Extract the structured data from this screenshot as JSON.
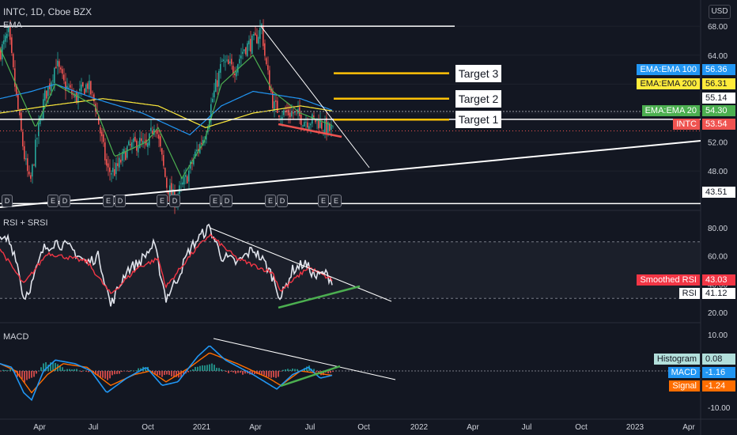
{
  "header": {
    "symbol_line": "INTC, 1D, Cboe BZX",
    "ema_title": "EMA",
    "currency": "USD"
  },
  "panes": {
    "rsi_title": "RSI + SRSI",
    "macd_title": "MACD"
  },
  "targets": [
    {
      "label": "Target 3",
      "price": 61.5
    },
    {
      "label": "Target 2",
      "price": 58.0
    },
    {
      "label": "Target 1",
      "price": 55.1
    }
  ],
  "event_markers": [
    "D",
    "E",
    "D",
    "E",
    "D",
    "E",
    "D",
    "E",
    "D",
    "E",
    "D",
    "E",
    "E"
  ],
  "price_tags": [
    {
      "label": "EMA:EMA 100",
      "value": "56.36",
      "bg": "#2196f3",
      "fg": "#ffffff"
    },
    {
      "label": "EMA:EMA 200",
      "value": "56.31",
      "bg": "#ffeb3b",
      "fg": "#131722"
    },
    {
      "label": "",
      "value": "55.14",
      "bg": "#ffffff",
      "fg": "#131722"
    },
    {
      "label": "EMA:EMA 20",
      "value": "54.30",
      "bg": "#4caf50",
      "fg": "#ffffff"
    },
    {
      "label": "INTC",
      "value": "53.54",
      "bg": "#ef5350",
      "fg": "#ffffff"
    },
    {
      "label": "",
      "value": "43.51",
      "bg": "#ffffff",
      "fg": "#131722"
    }
  ],
  "rsi_tags": [
    {
      "label": "Smoothed RSI",
      "value": "43.03",
      "bg": "#f23645",
      "fg": "#ffffff"
    },
    {
      "label": "RSI",
      "value": "41.12",
      "bg": "#ffffff",
      "fg": "#131722"
    }
  ],
  "macd_tags": [
    {
      "label": "Histogram",
      "value": "0.08",
      "bg": "#b2dfdb",
      "fg": "#131722"
    },
    {
      "label": "MACD",
      "value": "-1.16",
      "bg": "#2196f3",
      "fg": "#ffffff"
    },
    {
      "label": "Signal",
      "value": "-1.24",
      "bg": "#ff6d00",
      "fg": "#ffffff"
    }
  ],
  "chart_data": {
    "type": "line",
    "title": "INTC, 1D, Cboe BZX",
    "x_labels": [
      "Apr",
      "Jul",
      "Oct",
      "2021",
      "Apr",
      "Jul",
      "Oct",
      "2022",
      "Apr",
      "Jul",
      "Oct",
      "2023",
      "Apr"
    ],
    "price_ticks": [
      68.0,
      64.0,
      60.0,
      56.0,
      52.0,
      48.0
    ],
    "rsi_ticks": [
      80.0,
      60.0,
      40.0,
      20.0
    ],
    "macd_ticks": [
      10.0,
      -10.0
    ],
    "price": {
      "ylim": [
        43.0,
        69.0
      ],
      "close_anchors": [
        [
          0,
          64.5
        ],
        [
          10,
          67
        ],
        [
          20,
          58
        ],
        [
          30,
          50
        ],
        [
          37,
          46
        ],
        [
          45,
          52
        ],
        [
          55,
          58
        ],
        [
          62,
          60
        ],
        [
          70,
          63
        ],
        [
          80,
          60
        ],
        [
          95,
          58
        ],
        [
          110,
          60
        ],
        [
          120,
          57
        ],
        [
          135,
          48
        ],
        [
          145,
          48
        ],
        [
          160,
          51
        ],
        [
          175,
          52
        ],
        [
          185,
          51
        ],
        [
          195,
          55
        ],
        [
          200,
          52
        ],
        [
          210,
          46
        ],
        [
          220,
          44
        ],
        [
          235,
          47
        ],
        [
          245,
          50
        ],
        [
          258,
          53
        ],
        [
          268,
          58
        ],
        [
          280,
          63
        ],
        [
          295,
          62
        ],
        [
          308,
          65
        ],
        [
          322,
          66
        ],
        [
          330,
          68
        ],
        [
          335,
          63
        ],
        [
          345,
          57
        ],
        [
          355,
          56
        ],
        [
          370,
          56
        ],
        [
          385,
          55
        ],
        [
          400,
          55
        ],
        [
          410,
          54
        ],
        [
          420,
          53.5
        ]
      ],
      "ema20_anchors": [
        [
          0,
          65
        ],
        [
          20,
          60
        ],
        [
          45,
          54
        ],
        [
          70,
          60
        ],
        [
          120,
          57
        ],
        [
          145,
          50
        ],
        [
          185,
          52
        ],
        [
          200,
          54
        ],
        [
          230,
          47
        ],
        [
          258,
          52
        ],
        [
          280,
          60
        ],
        [
          320,
          64
        ],
        [
          345,
          59
        ],
        [
          380,
          56
        ],
        [
          420,
          54.3
        ]
      ],
      "ema100_anchors": [
        [
          0,
          58
        ],
        [
          40,
          59
        ],
        [
          70,
          60
        ],
        [
          120,
          58
        ],
        [
          180,
          56
        ],
        [
          240,
          53
        ],
        [
          280,
          57
        ],
        [
          320,
          59
        ],
        [
          380,
          58
        ],
        [
          420,
          56.4
        ]
      ],
      "ema200_anchors": [
        [
          0,
          56
        ],
        [
          60,
          57
        ],
        [
          130,
          58
        ],
        [
          200,
          57
        ],
        [
          260,
          54
        ],
        [
          320,
          56
        ],
        [
          380,
          57
        ],
        [
          420,
          56.3
        ]
      ]
    },
    "rsi": {
      "ylim": [
        15,
        90
      ],
      "anchors": [
        [
          0,
          70
        ],
        [
          10,
          72
        ],
        [
          20,
          60
        ],
        [
          30,
          30
        ],
        [
          40,
          40
        ],
        [
          55,
          65
        ],
        [
          70,
          70
        ],
        [
          90,
          65
        ],
        [
          110,
          55
        ],
        [
          125,
          60
        ],
        [
          140,
          25
        ],
        [
          160,
          50
        ],
        [
          175,
          55
        ],
        [
          195,
          68
        ],
        [
          210,
          30
        ],
        [
          225,
          45
        ],
        [
          240,
          65
        ],
        [
          255,
          75
        ],
        [
          265,
          80
        ],
        [
          280,
          60
        ],
        [
          300,
          55
        ],
        [
          320,
          65
        ],
        [
          335,
          55
        ],
        [
          345,
          45
        ],
        [
          355,
          30
        ],
        [
          370,
          50
        ],
        [
          385,
          55
        ],
        [
          400,
          45
        ],
        [
          410,
          48
        ],
        [
          420,
          43
        ]
      ],
      "smooth_anchors": [
        [
          0,
          65
        ],
        [
          30,
          40
        ],
        [
          60,
          62
        ],
        [
          110,
          56
        ],
        [
          140,
          33
        ],
        [
          175,
          52
        ],
        [
          200,
          58
        ],
        [
          210,
          38
        ],
        [
          240,
          60
        ],
        [
          265,
          75
        ],
        [
          300,
          58
        ],
        [
          345,
          48
        ],
        [
          355,
          35
        ],
        [
          390,
          52
        ],
        [
          420,
          43
        ]
      ]
    },
    "macd": {
      "ylim": [
        -12,
        12
      ],
      "anchors": [
        [
          0,
          2
        ],
        [
          15,
          1
        ],
        [
          30,
          -6
        ],
        [
          40,
          -8
        ],
        [
          55,
          0
        ],
        [
          70,
          3
        ],
        [
          95,
          2
        ],
        [
          115,
          0
        ],
        [
          135,
          -6
        ],
        [
          160,
          -2
        ],
        [
          185,
          1
        ],
        [
          205,
          -4
        ],
        [
          225,
          -3
        ],
        [
          250,
          4
        ],
        [
          265,
          7
        ],
        [
          285,
          3
        ],
        [
          320,
          -1
        ],
        [
          335,
          -3
        ],
        [
          350,
          -5
        ],
        [
          370,
          -1
        ],
        [
          390,
          1
        ],
        [
          405,
          -2
        ],
        [
          420,
          -1.2
        ]
      ],
      "signal_anchors": [
        [
          0,
          2
        ],
        [
          20,
          0
        ],
        [
          40,
          -6
        ],
        [
          60,
          -1
        ],
        [
          80,
          2
        ],
        [
          110,
          1
        ],
        [
          140,
          -4
        ],
        [
          170,
          -1
        ],
        [
          190,
          0
        ],
        [
          210,
          -3
        ],
        [
          240,
          1
        ],
        [
          265,
          5
        ],
        [
          300,
          2
        ],
        [
          340,
          -2
        ],
        [
          355,
          -4
        ],
        [
          380,
          0
        ],
        [
          420,
          -1.2
        ]
      ]
    }
  }
}
